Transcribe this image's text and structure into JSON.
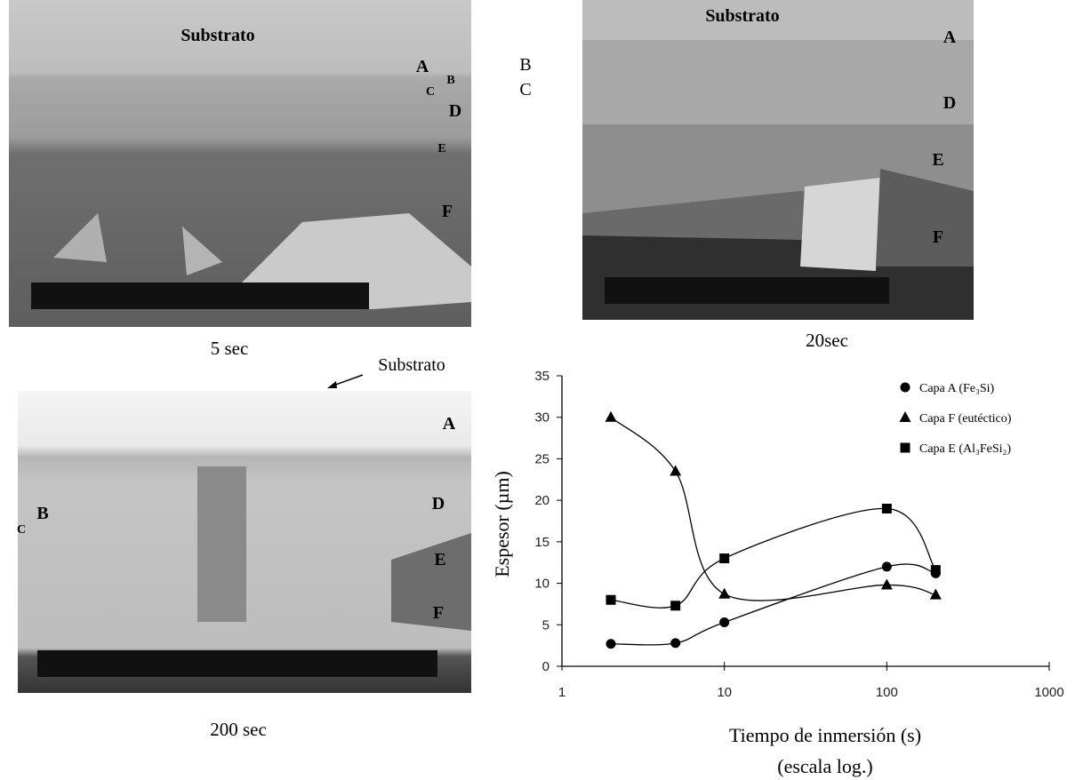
{
  "panels": [
    {
      "caption": "5 sec",
      "labels": [
        "Substrato",
        "A",
        "B",
        "C",
        "D",
        "E",
        "F",
        "B",
        "C"
      ]
    },
    {
      "caption": "20sec",
      "labels": [
        "Substrato",
        "A",
        "D",
        "E",
        "F"
      ]
    },
    {
      "caption": "200 sec",
      "labels": [
        "Substrato",
        "A",
        "B",
        "C",
        "D",
        "E",
        "F"
      ]
    }
  ],
  "chart_data": {
    "type": "line",
    "y_label": "Espesor (µm)",
    "x_label": "Tiempo de inmersión (s)",
    "x_note": "(escala log.)",
    "x_scale": "log",
    "xlim": [
      1,
      1000
    ],
    "xticks": [
      1,
      10,
      100,
      1000
    ],
    "ylim": [
      0,
      35
    ],
    "yticks": [
      0,
      5,
      10,
      15,
      20,
      25,
      30,
      35
    ],
    "legend": "top-right",
    "series": [
      {
        "name": "Capa A (Fe₃Si)",
        "marker": "circle",
        "color": "#000000",
        "x": [
          2,
          5,
          10,
          100,
          200
        ],
        "values": [
          2.7,
          2.8,
          5.3,
          12,
          11.2
        ]
      },
      {
        "name": "Capa F (eutéctico)",
        "marker": "triangle",
        "color": "#000000",
        "x": [
          2,
          5,
          10,
          100,
          200
        ],
        "values": [
          30,
          23.5,
          8.7,
          9.8,
          8.6
        ]
      },
      {
        "name": "Capa E (Al₃FeSi₂)",
        "marker": "square",
        "color": "#000000",
        "x": [
          2,
          5,
          10,
          100,
          200
        ],
        "values": [
          8,
          7.3,
          13,
          19,
          11.6
        ]
      }
    ]
  }
}
